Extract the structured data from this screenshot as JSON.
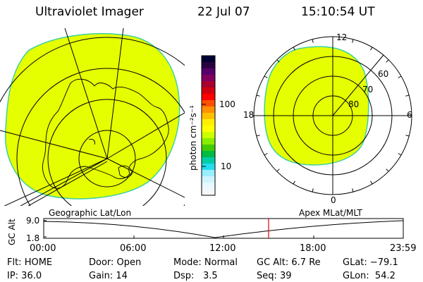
{
  "header": {
    "title": "Ultraviolet Imager",
    "date": "22 Jul 07",
    "time": "15:10:54 UT"
  },
  "colorbar": {
    "label": "photon cm⁻²s⁻¹",
    "ticks": [
      "100",
      "10"
    ],
    "colors": [
      "#000033",
      "#2a0040",
      "#55006a",
      "#800060",
      "#a80030",
      "#d00010",
      "#ff0000",
      "#ff5000",
      "#ff9000",
      "#ffc000",
      "#ffee00",
      "#ffff00",
      "#ccff00",
      "#88ee00",
      "#44cc00",
      "#00bb44",
      "#00ccaa",
      "#22ddee",
      "#99eeff",
      "#ccf4ff",
      "#e8f8ff",
      "#f4f8fa"
    ]
  },
  "polar": {
    "labels": {
      "top": "12",
      "bottom": "0",
      "left": "18",
      "right": "6",
      "lat60": "60",
      "lat70": "70",
      "lat80": "80"
    }
  },
  "timeline": {
    "left_title": "Geographic Lat/Lon",
    "right_title": "Apex MLat/MLT",
    "yaxis_label": "GC Alt",
    "ymax": "9.0",
    "ymin": "1.8",
    "xticks": [
      "00:00",
      "06:00",
      "12:00",
      "18:00",
      "23:59"
    ],
    "marker_time": "15:10:54"
  },
  "footer": {
    "filter": "Flt: HOME",
    "ip": "IP: 36.0",
    "door": "Door: Open",
    "gain": "Gain: 14",
    "mode": "Mode: Normal",
    "dsp_label": "Dsp:",
    "dsp_value": "3.5",
    "gc_alt": "GC Alt: 6.7 Re",
    "seq": "Seq: 39",
    "glat": "GLat: −79.1",
    "glon": "GLon:  54.2"
  },
  "colors": {
    "aurora": "#e6ff00",
    "aurora_edge": "#3ed0a0",
    "marker": "#dd0000"
  }
}
